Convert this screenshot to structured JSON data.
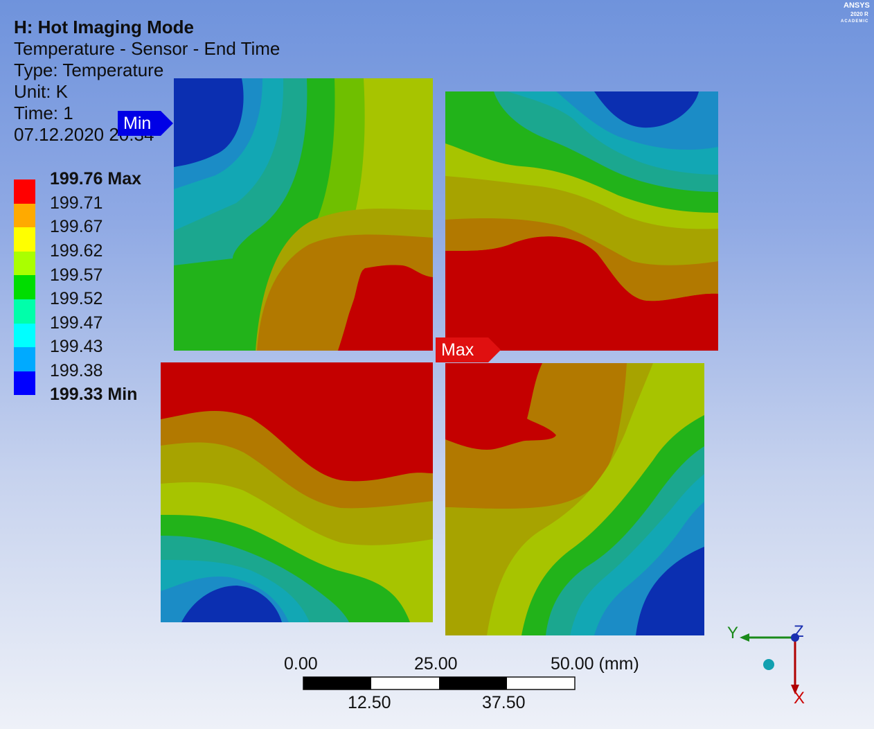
{
  "info": {
    "title": "H: Hot Imaging Mode",
    "lines": [
      "Temperature - Sensor - End Time",
      "Type: Temperature",
      "Unit: K",
      "Time: 1",
      "07.12.2020 20:34"
    ]
  },
  "legend": {
    "labels": [
      "199.76 Max",
      "199.71",
      "199.67",
      "199.62",
      "199.57",
      "199.52",
      "199.47",
      "199.43",
      "199.38",
      "199.33 Min"
    ],
    "colors": [
      "#ff0000",
      "#ffaa00",
      "#ffff00",
      "#aaff00",
      "#00dd00",
      "#00ffaa",
      "#00ffff",
      "#00aaff",
      "#0000ff",
      "#0000ff"
    ]
  },
  "markers": {
    "min": "Min",
    "max": "Max"
  },
  "scale": {
    "top": [
      "0.00",
      "25.00",
      "50.00 (mm)"
    ],
    "bottom": [
      "12.50",
      "37.50"
    ]
  },
  "triad": {
    "y": "Y",
    "z": "Z",
    "x": "X"
  },
  "logo": {
    "brand": "ANSYS",
    "line2": "2020 R",
    "line3": "ACADEMIC"
  }
}
